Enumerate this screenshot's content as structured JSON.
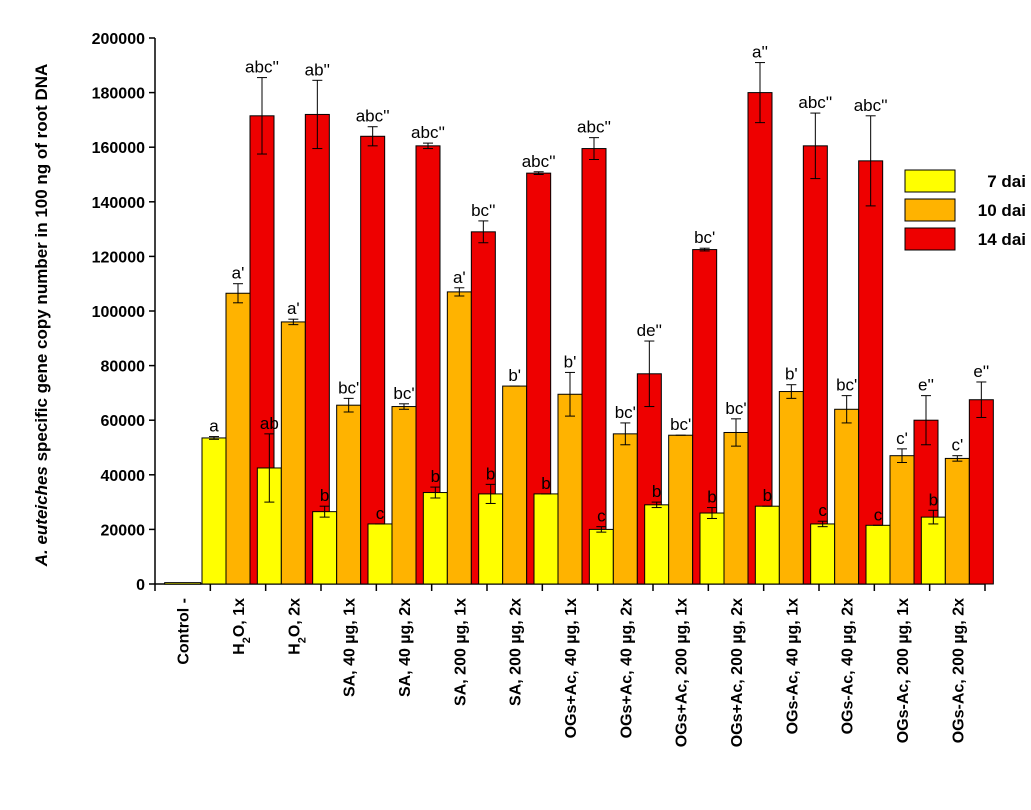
{
  "chart_data": {
    "type": "bar",
    "ylabel_italic": "A. euteiches",
    "ylabel_rest": " specific gene copy number in 100 ng of root DNA",
    "ylim": [
      0,
      200000
    ],
    "yticks": [
      0,
      20000,
      40000,
      60000,
      80000,
      100000,
      120000,
      140000,
      160000,
      180000,
      200000
    ],
    "ytick_labels": [
      "0",
      "20000",
      "40000",
      "60000",
      "80000",
      "100000",
      "120000",
      "140000",
      "160000",
      "180000",
      "200000"
    ],
    "grid": false,
    "legend_position": "right",
    "categories": [
      "Control -",
      "H2O,  1x",
      "H2O,  2x",
      "SA, 40 µg, 1x",
      "SA, 40 µg, 2x",
      "SA, 200 µg, 1x",
      "SA, 200 µg, 2x",
      "OGs+Ac, 40 µg, 1x",
      "OGs+Ac, 40 µg, 2x",
      "OGs+Ac, 200 µg, 1x",
      "OGs+Ac, 200 µg, 2x",
      "OGs-Ac, 40 µg, 1x",
      "OGs-Ac, 40 µg, 2x",
      "OGs-Ac, 200 µg, 1x",
      "OGs-Ac, 200 µg, 2x"
    ],
    "series": [
      {
        "name": "7 dai",
        "color": "#ffff00",
        "values": [
          0,
          53500,
          42500,
          26500,
          22000,
          33500,
          33000,
          33000,
          20000,
          29000,
          26000,
          28500,
          22000,
          21500,
          24500
        ],
        "errors": [
          0,
          500,
          12500,
          2000,
          0,
          2000,
          3500,
          0,
          1000,
          1000,
          2000,
          0,
          1000,
          0,
          2500
        ],
        "labels": [
          "",
          "a",
          "ab",
          "b",
          "c",
          "b",
          "b",
          "b",
          "c",
          "b",
          "b",
          "b",
          "c",
          "c",
          "b"
        ]
      },
      {
        "name": "10 dai",
        "color": "#ffb300",
        "values": [
          0,
          106500,
          96000,
          65500,
          65000,
          107000,
          72500,
          69500,
          55000,
          54500,
          55500,
          70500,
          64000,
          47000,
          46000
        ],
        "errors": [
          0,
          3500,
          1000,
          2500,
          1000,
          1500,
          0,
          8000,
          4000,
          0,
          5000,
          2500,
          5000,
          2500,
          1000
        ],
        "labels": [
          "",
          "a'",
          "a'",
          "bc'",
          "bc'",
          "a'",
          "b'",
          "b'",
          "bc'",
          "bc'",
          "bc'",
          "b'",
          "bc'",
          "c'",
          "c'"
        ]
      },
      {
        "name": "14 dai",
        "color": "#ee0000",
        "values": [
          0,
          171500,
          172000,
          164000,
          160500,
          129000,
          150500,
          159500,
          77000,
          122500,
          180000,
          160500,
          155000,
          60000,
          67500
        ],
        "errors": [
          0,
          14000,
          12500,
          3500,
          1000,
          4000,
          500,
          4000,
          12000,
          500,
          11000,
          12000,
          16500,
          9000,
          6500
        ],
        "labels": [
          "",
          "abc''",
          "ab''",
          "abc''",
          "abc''",
          "bc''",
          "abc''",
          "abc''",
          "de''",
          "bc'",
          "a''",
          "abc''",
          "abc''",
          "e''",
          "e''"
        ]
      }
    ],
    "control_value": 500
  }
}
